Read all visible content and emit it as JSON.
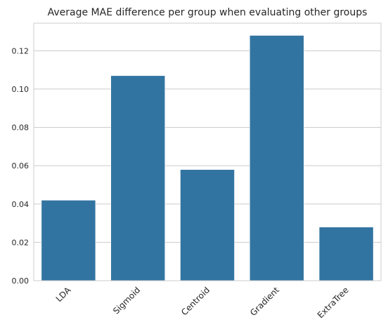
{
  "chart_data": {
    "type": "bar",
    "title": "Average MAE difference per group when evaluating other groups",
    "xlabel": "",
    "ylabel": "",
    "categories": [
      "LDA",
      "Sigmoid",
      "Centroid",
      "Gradient",
      "ExtraTree"
    ],
    "values": [
      0.042,
      0.107,
      0.058,
      0.128,
      0.028
    ],
    "ylim": [
      0,
      0.1344
    ],
    "yticks": [
      0.0,
      0.02,
      0.04,
      0.06,
      0.08,
      0.1,
      0.12
    ],
    "ytick_labels": [
      "0.00",
      "0.02",
      "0.04",
      "0.06",
      "0.08",
      "0.10",
      "0.12"
    ],
    "grid": "horizontal",
    "bar_color": "#3274a1",
    "grid_color": "#cccccc",
    "frame_color": "#cccccc"
  }
}
